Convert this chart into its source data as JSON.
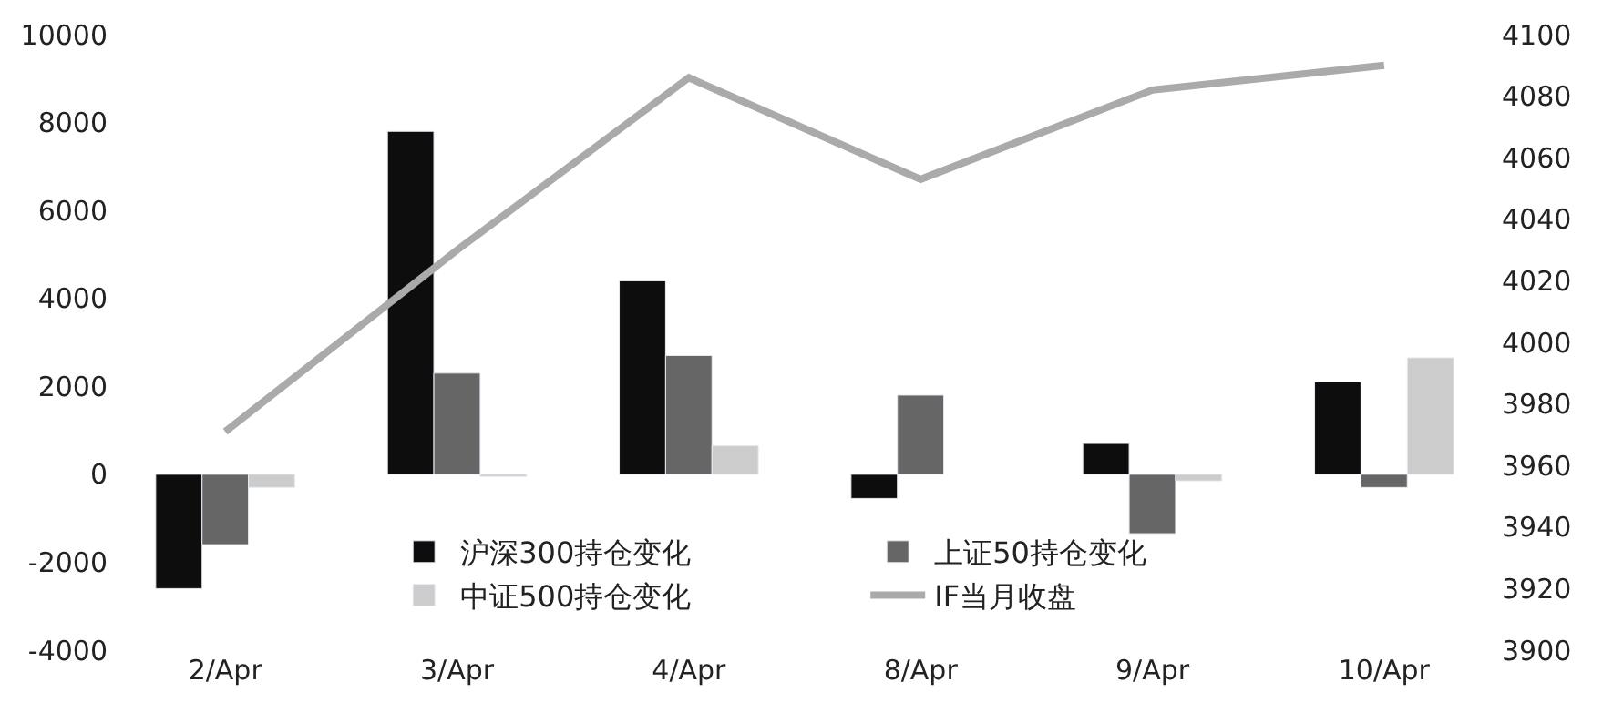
{
  "chart_data": {
    "type": "bar",
    "categories": [
      "2/Apr",
      "3/Apr",
      "4/Apr",
      "8/Apr",
      "9/Apr",
      "10/Apr"
    ],
    "series": [
      {
        "name": "沪深300持仓变化",
        "color": "#0d0d0d",
        "values": [
          -2600,
          7800,
          4400,
          -550,
          700,
          2100
        ]
      },
      {
        "name": "上证50持仓变化",
        "color": "#666666",
        "values": [
          -1600,
          2300,
          2700,
          1800,
          -1350,
          -300
        ]
      },
      {
        "name": "中证500持仓变化",
        "color": "#cccccc",
        "values": [
          -300,
          -50,
          650,
          null,
          -150,
          2650
        ]
      },
      {
        "name": "IF当月收盘",
        "color": "#aaaaaa",
        "type": "line",
        "axis": "y2",
        "marker": "none",
        "values": [
          3971,
          4030,
          4086,
          4053,
          4082,
          4090
        ]
      }
    ],
    "ylim": [
      -4000,
      10000
    ],
    "yticks": [
      -4000,
      -2000,
      0,
      2000,
      4000,
      6000,
      8000,
      10000
    ],
    "y2lim": [
      3900,
      4100
    ],
    "y2ticks": [
      3900,
      3920,
      3940,
      3960,
      3980,
      4000,
      4020,
      4040,
      4060,
      4080,
      4100
    ],
    "legend": "bottom"
  }
}
